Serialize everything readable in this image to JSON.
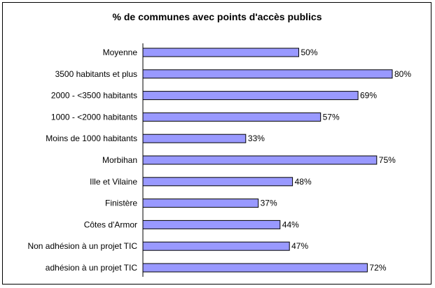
{
  "chart_data": {
    "type": "bar",
    "orientation": "horizontal",
    "title": "% de communes avec points d'accès publics",
    "categories": [
      "Moyenne",
      "3500 habitants et plus",
      "2000 - <3500 habitants",
      "1000 - <2000 habitants",
      "Moins de 1000 habitants",
      "Morbihan",
      "Ille et Vilaine",
      "Finistère",
      "Côtes d'Armor",
      "Non adhésion à un projet TIC",
      "adhésion à un projet TIC"
    ],
    "values": [
      50,
      80,
      69,
      57,
      33,
      75,
      48,
      37,
      44,
      47,
      72
    ],
    "value_labels": [
      "50%",
      "80%",
      "69%",
      "57%",
      "33%",
      "75%",
      "48%",
      "37%",
      "44%",
      "47%",
      "72%"
    ],
    "xlim": [
      0,
      80
    ],
    "grid": false,
    "legend": "none",
    "bar_color": "#9999ff",
    "bar_edge_color": "#000000"
  }
}
